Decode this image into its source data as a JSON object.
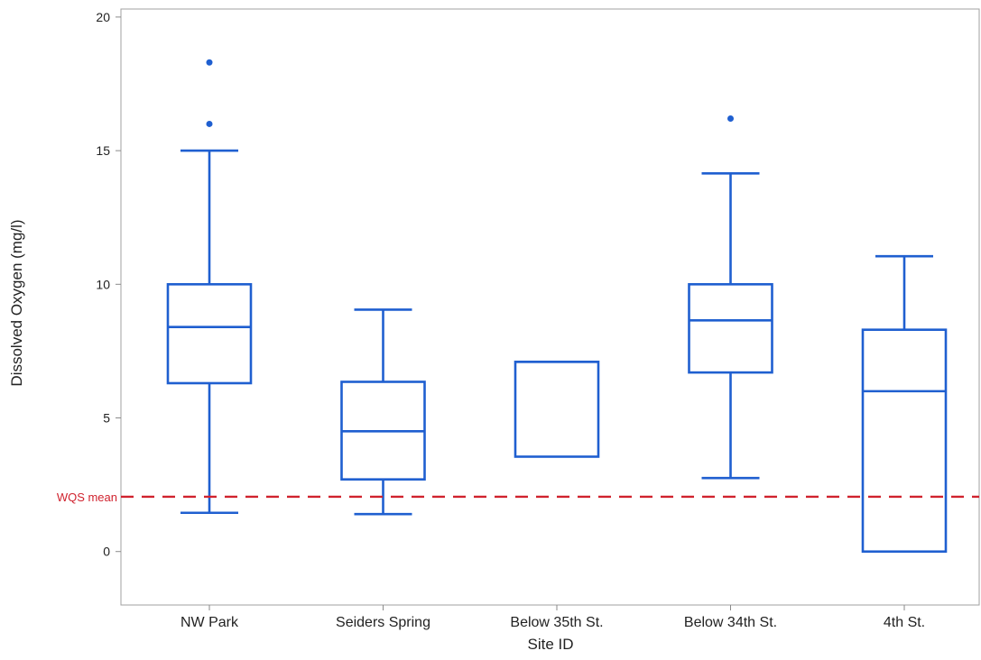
{
  "chart_data": {
    "type": "box",
    "title": "",
    "xlabel": "Site ID",
    "ylabel": "Dissolved Oxygen (mg/l)",
    "ylim": [
      -2,
      20.3
    ],
    "y_ticks": [
      0,
      5,
      10,
      15,
      20
    ],
    "y_tick_labels": [
      "0",
      "5",
      "10",
      "15",
      "20"
    ],
    "grid": false,
    "categories": [
      "NW Park",
      "Seiders Spring",
      "Below 35th St.",
      "Below 34th St.",
      "4th St."
    ],
    "boxes": [
      {
        "category": "NW Park",
        "whisker_low": 1.45,
        "q1": 6.3,
        "median": 8.4,
        "q3": 10.0,
        "whisker_high": 15.0,
        "outliers": [
          16.0,
          18.3
        ]
      },
      {
        "category": "Seiders Spring",
        "whisker_low": 1.4,
        "q1": 2.7,
        "median": 4.5,
        "q3": 6.35,
        "whisker_high": 9.05,
        "outliers": []
      },
      {
        "category": "Below 35th St.",
        "whisker_low": 3.55,
        "q1": 3.55,
        "median": 7.1,
        "q3": 7.1,
        "whisker_high": 7.1,
        "outliers": []
      },
      {
        "category": "Below 34th St.",
        "whisker_low": 2.75,
        "q1": 6.7,
        "median": 8.65,
        "q3": 10.0,
        "whisker_high": 14.15,
        "outliers": [
          16.2
        ]
      },
      {
        "category": "4th St.",
        "whisker_low": 0.0,
        "q1": 0.0,
        "median": 6.0,
        "q3": 8.3,
        "whisker_high": 11.05,
        "outliers": []
      }
    ],
    "reference_line": {
      "label": "WQS mean",
      "value": 2.05,
      "style": "dashed"
    },
    "colors": {
      "box": "#1f5fd0",
      "reference": "#d0222e",
      "axis": "#8a8a8a",
      "text": "#222222"
    }
  }
}
